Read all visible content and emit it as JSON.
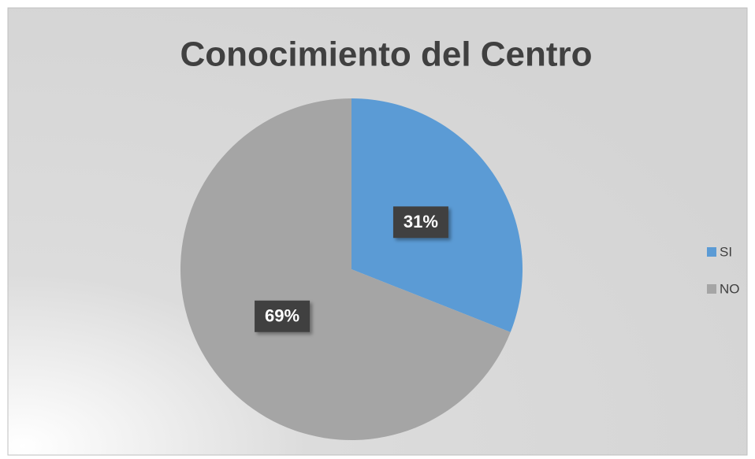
{
  "chart_data": {
    "type": "pie",
    "title": "Conocimiento del Centro",
    "categories": [
      "SI",
      "NO"
    ],
    "values": [
      31,
      69
    ],
    "value_labels": [
      "31%",
      "69%"
    ],
    "colors": [
      "#5b9bd5",
      "#a5a5a5"
    ],
    "legend": "right"
  }
}
